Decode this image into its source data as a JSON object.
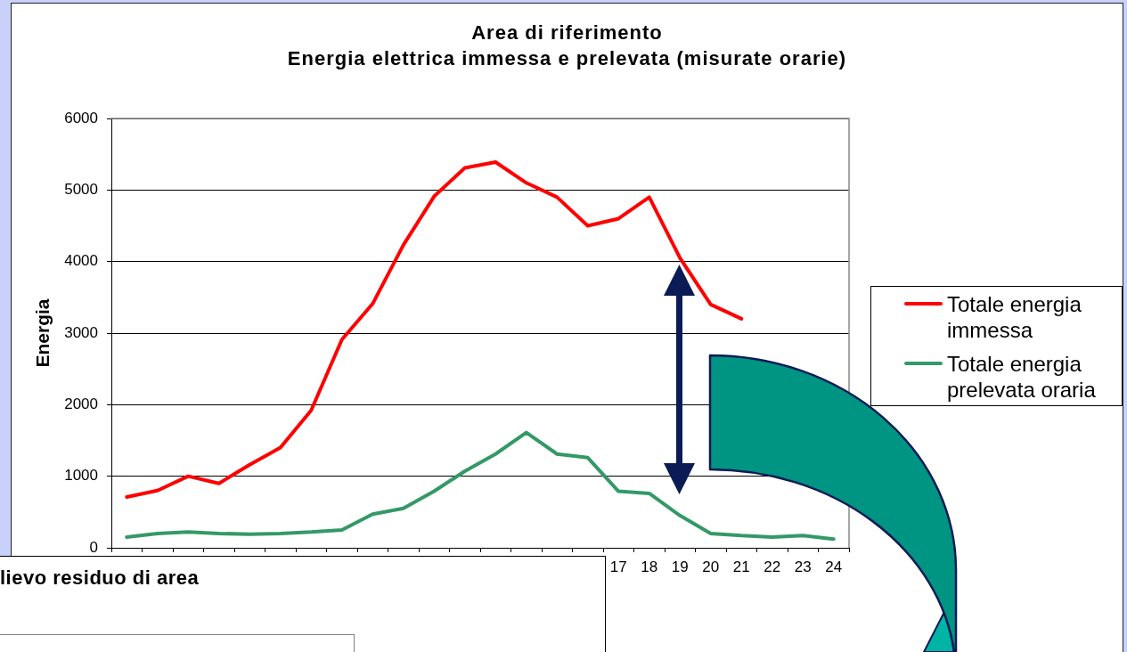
{
  "chart_data": {
    "type": "line",
    "title": "Area di riferimento",
    "subtitle": "Energia elettrica immessa e prelevata (misurate orarie)",
    "ylabel": "Energia",
    "categories": [
      null,
      null,
      null,
      null,
      null,
      null,
      null,
      null,
      null,
      null,
      null,
      null,
      null,
      null,
      null,
      null,
      "17",
      "18",
      "19",
      "20",
      "21",
      "22",
      "23",
      "24"
    ],
    "series": [
      {
        "name": "Totale energia immessa",
        "color": "#ff0000",
        "values": [
          710,
          800,
          1000,
          900,
          1160,
          1400,
          1920,
          2910,
          3410,
          4230,
          4910,
          5310,
          5390,
          5100,
          4900,
          4500,
          4600,
          4900,
          4050,
          3400,
          3200,
          null,
          null,
          null
        ]
      },
      {
        "name": "Totale energia prelevata oraria",
        "color": "#339966",
        "values": [
          150,
          200,
          220,
          200,
          190,
          200,
          220,
          250,
          470,
          550,
          790,
          1070,
          1310,
          1610,
          1310,
          1260,
          790,
          760,
          450,
          200,
          170,
          150,
          170,
          120
        ]
      }
    ],
    "ylim": [
      0,
      6000
    ],
    "yticks": [
      0,
      1000,
      2000,
      3000,
      4000,
      5000,
      6000
    ],
    "grid": "y",
    "legend": "right",
    "marker": "none",
    "line_style": "solid",
    "annotations": [
      "lievo residuo di area"
    ]
  }
}
